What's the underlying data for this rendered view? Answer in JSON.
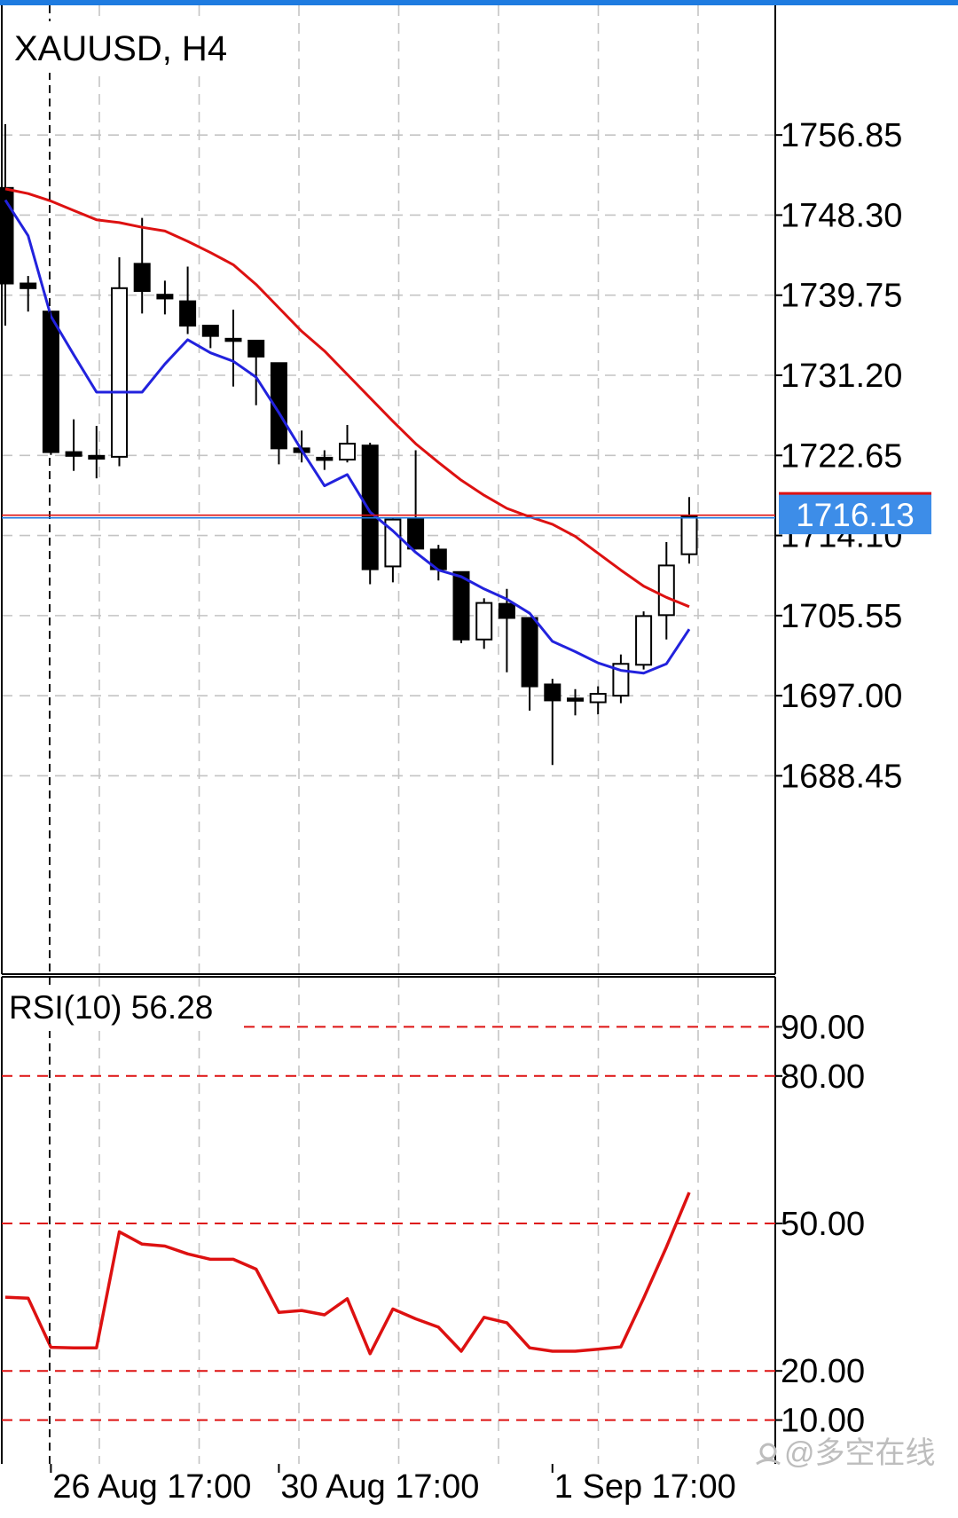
{
  "header": {
    "symbol_label": "XAUUSD, H4"
  },
  "current_price": {
    "label": "1716.13",
    "value": 1716.13
  },
  "watermark": {
    "text": "@多空在线",
    "icon": "account-icon"
  },
  "colors": {
    "accent_top": "#1e7be0",
    "ma_fast": "#2222dd",
    "ma_slow": "#dd1111",
    "rsi_line": "#dd1111",
    "rsi_level": "#dd1111",
    "price_badge": "#3d8de8",
    "bid_line": "#1e7be0",
    "ask_line": "#dd1111",
    "grid": "#c4c4c4",
    "candle_bear": "#000000",
    "candle_bull": "#ffffff",
    "text": "#000000"
  },
  "chart_data": [
    {
      "type": "candlestick",
      "title": "XAUUSD, H4",
      "ylim": [
        1677.6,
        1762.5
      ],
      "y_ticks": [
        1756.85,
        1748.3,
        1739.75,
        1731.2,
        1722.65,
        1714.1,
        1705.55,
        1697.0,
        1688.45
      ],
      "y_tick_labels": [
        "1756.85",
        "1748.30",
        "1739.75",
        "1731.20",
        "1722.65",
        "1714.10",
        "1705.55",
        "1697.00",
        "1688.45"
      ],
      "x_tick_labels": [
        "26 Aug 17:00",
        "30 Aug 17:00",
        "1 Sep 17:00"
      ],
      "x_tick_bar_index": [
        2,
        12,
        24
      ],
      "grid": true,
      "candles": [
        {
          "o": 1751.2,
          "h": 1758.0,
          "l": 1736.5,
          "c": 1741.0
        },
        {
          "o": 1741.0,
          "h": 1741.8,
          "l": 1738.0,
          "c": 1740.5
        },
        {
          "o": 1738.0,
          "h": 1738.0,
          "l": 1722.7,
          "c": 1723.0
        },
        {
          "o": 1723.0,
          "h": 1726.5,
          "l": 1721.0,
          "c": 1722.6
        },
        {
          "o": 1722.6,
          "h": 1725.8,
          "l": 1720.2,
          "c": 1722.3
        },
        {
          "o": 1722.5,
          "h": 1743.8,
          "l": 1721.5,
          "c": 1740.5
        },
        {
          "o": 1743.1,
          "h": 1748.0,
          "l": 1737.8,
          "c": 1740.2
        },
        {
          "o": 1739.8,
          "h": 1741.3,
          "l": 1737.7,
          "c": 1739.4
        },
        {
          "o": 1739.1,
          "h": 1742.8,
          "l": 1735.6,
          "c": 1736.5
        },
        {
          "o": 1736.5,
          "h": 1736.5,
          "l": 1734.1,
          "c": 1735.4
        },
        {
          "o": 1735.1,
          "h": 1738.2,
          "l": 1730.0,
          "c": 1735.0
        },
        {
          "o": 1734.9,
          "h": 1734.9,
          "l": 1728.0,
          "c": 1733.2
        },
        {
          "o": 1732.5,
          "h": 1732.5,
          "l": 1721.7,
          "c": 1723.4
        },
        {
          "o": 1723.4,
          "h": 1725.3,
          "l": 1721.9,
          "c": 1723.0
        },
        {
          "o": 1722.4,
          "h": 1723.2,
          "l": 1721.1,
          "c": 1722.3
        },
        {
          "o": 1722.2,
          "h": 1725.9,
          "l": 1721.9,
          "c": 1723.9
        },
        {
          "o": 1723.7,
          "h": 1724.0,
          "l": 1708.9,
          "c": 1710.5
        },
        {
          "o": 1710.8,
          "h": 1716.0,
          "l": 1709.1,
          "c": 1715.8
        },
        {
          "o": 1715.9,
          "h": 1723.2,
          "l": 1712.6,
          "c": 1712.7
        },
        {
          "o": 1712.6,
          "h": 1713.1,
          "l": 1709.3,
          "c": 1710.5
        },
        {
          "o": 1710.2,
          "h": 1710.2,
          "l": 1702.6,
          "c": 1703.0
        },
        {
          "o": 1703.0,
          "h": 1707.4,
          "l": 1702.0,
          "c": 1706.9
        },
        {
          "o": 1706.8,
          "h": 1708.4,
          "l": 1699.5,
          "c": 1705.3
        },
        {
          "o": 1705.3,
          "h": 1705.3,
          "l": 1695.4,
          "c": 1698.0
        },
        {
          "o": 1698.2,
          "h": 1698.8,
          "l": 1689.6,
          "c": 1696.5
        },
        {
          "o": 1696.7,
          "h": 1697.7,
          "l": 1694.9,
          "c": 1696.5
        },
        {
          "o": 1696.3,
          "h": 1698.0,
          "l": 1695.0,
          "c": 1697.2
        },
        {
          "o": 1697.0,
          "h": 1701.4,
          "l": 1696.2,
          "c": 1700.4
        },
        {
          "o": 1700.3,
          "h": 1706.0,
          "l": 1699.8,
          "c": 1705.5
        },
        {
          "o": 1705.6,
          "h": 1713.4,
          "l": 1703.0,
          "c": 1710.9
        },
        {
          "o": 1712.1,
          "h": 1718.2,
          "l": 1711.1,
          "c": 1716.1
        }
      ],
      "series": [
        {
          "color": "#2222dd",
          "values": [
            1749.9,
            1746.1,
            1737.5,
            1733.4,
            1729.4,
            1729.4,
            1729.4,
            1732.4,
            1735.0,
            1733.6,
            1732.7,
            1731.0,
            1727.2,
            1723.2,
            1719.4,
            1720.6,
            1716.6,
            1714.6,
            1712.3,
            1710.4,
            1709.7,
            1708.4,
            1707.3,
            1705.8,
            1702.8,
            1701.7,
            1700.5,
            1699.7,
            1699.4,
            1700.4,
            1704.1
          ]
        },
        {
          "color": "#dd1111",
          "values": [
            1751.1,
            1750.6,
            1749.8,
            1748.8,
            1747.8,
            1747.5,
            1747.0,
            1746.6,
            1745.5,
            1744.3,
            1743.0,
            1740.9,
            1738.4,
            1735.9,
            1733.8,
            1731.3,
            1728.8,
            1726.3,
            1723.9,
            1721.9,
            1720.0,
            1718.4,
            1717.0,
            1716.1,
            1715.3,
            1714.0,
            1712.2,
            1710.4,
            1708.7,
            1707.5,
            1706.5
          ]
        }
      ]
    },
    {
      "type": "line",
      "title": "RSI(10) 56.28",
      "ylim": [
        0,
        100
      ],
      "y_ticks": [
        90,
        80,
        50,
        20,
        10
      ],
      "y_tick_labels": [
        "90.00",
        "80.00",
        "50.00",
        "20.00",
        "10.00"
      ],
      "levels": [
        90,
        80,
        50,
        20,
        10
      ],
      "grid": true,
      "series": [
        {
          "color": "#dd1111",
          "values": [
            35.0,
            34.8,
            24.8,
            24.7,
            24.7,
            48.3,
            45.8,
            45.4,
            43.8,
            42.7,
            42.7,
            40.7,
            31.9,
            32.3,
            31.4,
            34.7,
            23.5,
            32.6,
            30.6,
            28.9,
            24.0,
            30.9,
            29.8,
            24.7,
            24.0,
            24.0,
            24.4,
            24.9,
            34.8,
            45.2,
            56.3
          ]
        }
      ]
    }
  ]
}
